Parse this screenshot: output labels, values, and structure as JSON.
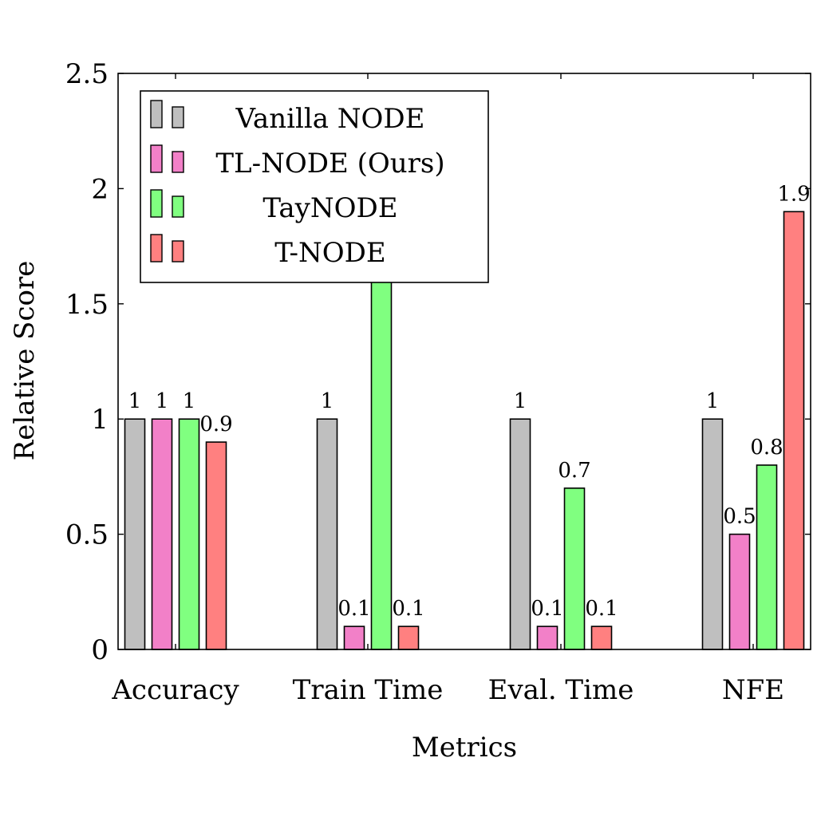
{
  "chart_data": {
    "type": "bar",
    "xlabel": "Metrics",
    "ylabel": "Relative Score",
    "ylim": [
      0,
      2.5
    ],
    "yticks": [
      "0",
      "0.5",
      "1",
      "1.5",
      "2",
      "2.5"
    ],
    "categories": [
      "Accuracy",
      "Train Time",
      "Eval. Time",
      "NFE"
    ],
    "series": [
      {
        "name": "Vanilla NODE",
        "color": "#bfbfbf",
        "values": [
          1,
          1,
          1,
          1
        ],
        "labels": [
          "1",
          "1",
          "1",
          "1"
        ]
      },
      {
        "name": "TL-NODE (Ours)",
        "color": "#f280c8",
        "values": [
          1,
          0.1,
          0.1,
          0.5
        ],
        "labels": [
          "1",
          "0.1",
          "0.1",
          "0.5"
        ]
      },
      {
        "name": "TayNODE",
        "color": "#80ff80",
        "values": [
          1,
          1.6,
          0.7,
          0.8
        ],
        "labels": [
          "1",
          "",
          "0.7",
          "0.8"
        ]
      },
      {
        "name": "T-NODE",
        "color": "#ff8080",
        "values": [
          0.9,
          0.1,
          0.1,
          1.9
        ],
        "labels": [
          "0.9",
          "0.1",
          "0.1",
          "1.9"
        ]
      }
    ],
    "grid": false,
    "legend_position": "top-left"
  }
}
